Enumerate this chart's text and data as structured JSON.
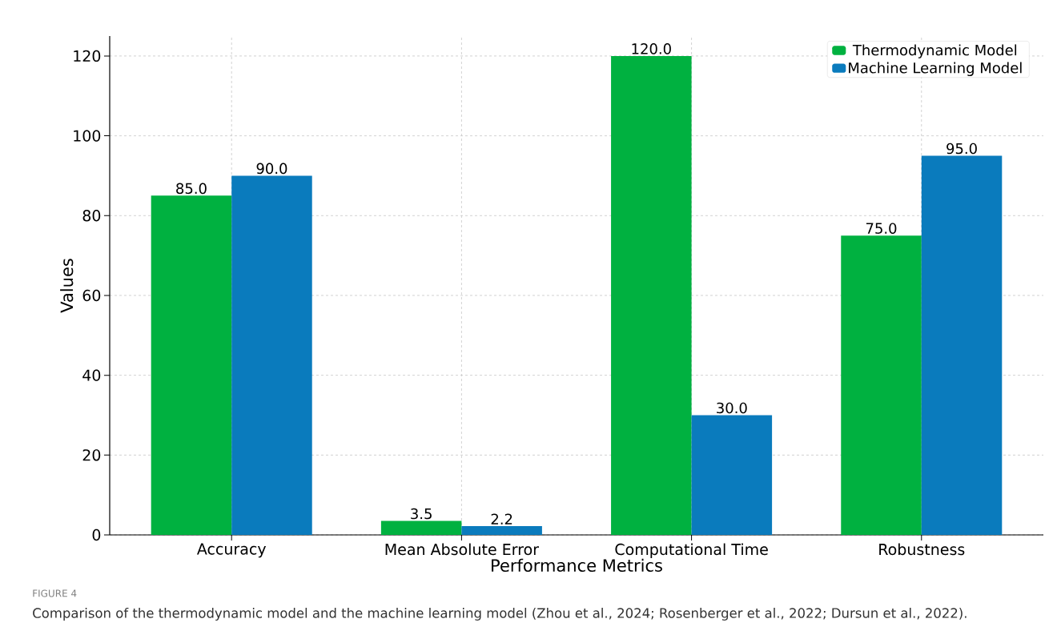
{
  "chart_data": {
    "type": "bar",
    "xlabel": "Performance Metrics",
    "ylabel": "Values",
    "categories": [
      "Accuracy",
      "Mean Absolute Error",
      "Computational Time",
      "Robustness"
    ],
    "series": [
      {
        "name": "Thermodynamic Model",
        "color": "#00b140",
        "values": [
          85.0,
          3.5,
          120.0,
          75.0
        ],
        "value_labels": [
          "85.0",
          "3.5",
          "120.0",
          "75.0"
        ]
      },
      {
        "name": "Machine Learning Model",
        "color": "#0a7bbd",
        "values": [
          90.0,
          2.2,
          30.0,
          95.0
        ],
        "value_labels": [
          "90.0",
          "2.2",
          "30.0",
          "95.0"
        ]
      }
    ],
    "ylim": [
      0,
      125
    ],
    "yticks": [
      0,
      20,
      40,
      60,
      80,
      100,
      120
    ],
    "grid": true,
    "legend": "top right",
    "annotations": [
      "FIGURE 4",
      "Comparison of the thermodynamic model and the machine learning model (Zhou et al., 2024; Rosenberger et al., 2022; Dursun et al., 2022)."
    ]
  }
}
